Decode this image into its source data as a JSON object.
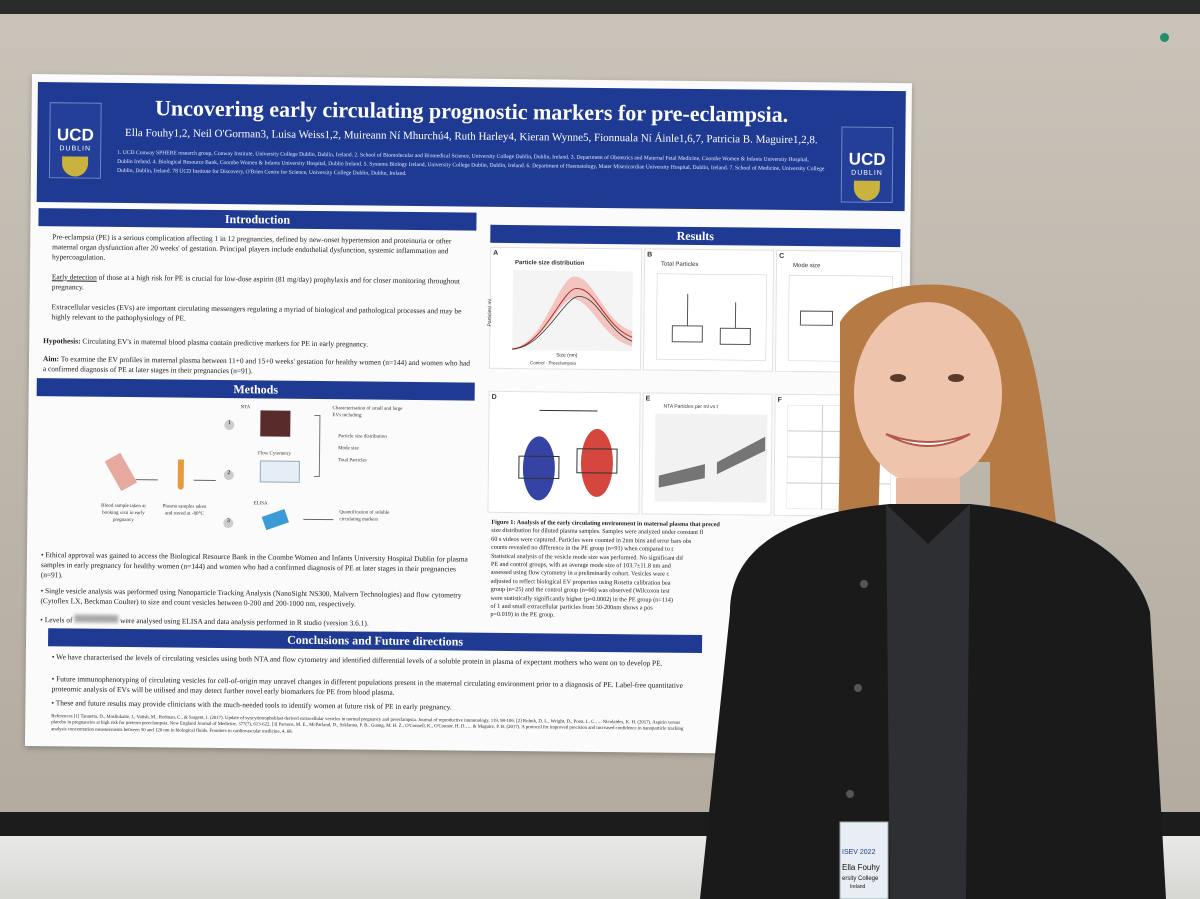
{
  "poster": {
    "title": "Uncovering early circulating prognostic markers for pre-eclampsia.",
    "authors": "Ella Fouhy1,2, Neil O'Gorman3, Luisa Weiss1,2, Muireann Ní Mhurchú4, Ruth Harley4, Kieran Wynne5, Fionnuala Ní Áinle1,6,7, Patricia B. Maguire1,2,8.",
    "affiliations": "1. UCD Conway SPHERE research group, Conway Institute, University College Dublin, Dublin, Ireland. 2. School of Biomolecular and Biomedical Science, University College Dublin, Dublin, Ireland. 3. Department of Obstetrics and Maternal Fetal Medicine, Coombe Women & Infants University Hospital, Dublin Ireland. 4. Biological Resource Bank, Coombe Women & Infants University Hospital, Dublin Ireland. 5. Systems Biology Ireland, University College Dublin, Dublin, Ireland. 6. Department of Haematology, Mater Misericordiae University Hospital, Dublin, Ireland. 7. School of Medicine, University College Dublin, Dublin, Ireland. 78 UCD Institute for Discovery, O'Brien Centre for Science, University College Dublin, Dublin, Ireland.",
    "logo_left": {
      "ucd": "UCD",
      "dublin": "DUBLIN"
    },
    "logo_right": {
      "ucd": "UCD",
      "dublin": "DUBLIN"
    },
    "introduction": {
      "heading": "Introduction",
      "p1": "Pre-eclampsia (PE) is a serious complication affecting 1 in 12 pregnancies, defined by new-onset hypertension and proteinuria or other maternal organ dysfunction after 20 weeks' of gestation. Principal players include endothelial dysfunction, systemic inflammation and hypercoagulation.",
      "p2_link": "Early detection",
      "p2": " of those at a high risk for PE is crucial for low-dose aspirin (81 mg/day) prophylaxis and for closer monitoring throughout pregnancy.",
      "p3": "Extracellular vesicles (EVs) are important circulating messengers regulating a myriad of biological and pathological processes and may be highly relevant to the pathophysiology of PE.",
      "hypothesis_label": "Hypothesis:",
      "hypothesis": " Circulating EV's in maternal blood plasma contain predictive markers for PE in early pregnancy.",
      "aim_label": "Aim:",
      "aim": " To examine the EV profiles in maternal plasma between 11+0 and 15+0 weeks' gestation for healthy women (n=144) and women who had a confirmed diagnosis of PE at later stages in their pregnancies (n=91)."
    },
    "methods": {
      "heading": "Methods",
      "fig": {
        "blood": "Blood sample taken at booking visit in early pregnancy",
        "plasma": "Plasma samples taken and stored at -80°C",
        "nta": "NTA",
        "flow": "Flow Cytometry",
        "elisa": "ELISA",
        "char": "Characterisation of small and large EVs including:",
        "checks": [
          "Particle size distribution",
          "Mode size",
          "Total Particles"
        ],
        "quant": "Quantification of soluble circulating markers",
        "steps": [
          "1",
          "2",
          "3"
        ]
      },
      "b1": "Ethical approval was gained to access the Biological Resource Bank in the Coombe Women and Infants University Hospital Dublin for plasma samples in early pregnancy for healthy women (n=144) and women who had a confirmed diagnosis of PE at later stages in their pregnancies (n=91).",
      "b2": "Single vesicle analysis was performed using Nanoparticle Tracking Analysis (NanoSight NS300, Malvern Technologies) and flow cytometry (Cytoflex LX, Beckman Coulter) to size and count vesicles between 0-200 and 200-1000 nm, respectively.",
      "b3a": "Levels of",
      "b3b": "were analysed using ELISA and data analysis performed in R studio (version 3.6.1)."
    },
    "results": {
      "heading": "Results",
      "panels": [
        "A",
        "B",
        "C",
        "D",
        "E",
        "F"
      ],
      "a_title": "Particle size distribution",
      "a_ylabel": "Particles/ ml",
      "a_xlabel": "Size (nm)",
      "a_legend": "Control · Preeclampsia",
      "b_title": "Total Particles",
      "c_title": "Mode size",
      "e_title": "NTA Particles per ml vs t",
      "figure_caption_bold": "Figure 1: Analysis of the early circulating environment in maternal plasma that preced",
      "caption_lines": [
        "size distribution for diluted plasma samples. Samples were analyzed under constant fl",
        "60 s videos were captured. Particles were counted in 2nm bins and error bars obs",
        "counts revealed no difference in the PE group (n=91) when compared to t",
        "Statistical analysis of the vesicle mode size was performed. No significant dif",
        "PE and control groups, with an average mode size of 103.7±11.8 nm and",
        "assessed using flow cytometry in a preliminarily cohort. Vesicles were c",
        "adjusted to reflect biological EV properties using Rosetta calibration bea",
        "group (n=25) and the control group (n=66) was observed (Wilcoxon test",
        "were statistically significantly higher (p=0.0002) in the PE group (n=114)",
        "of 1          and small extracellular particles from 50-200nm shows a pos",
        "p=0.019) in the PE group."
      ]
    },
    "conclusions": {
      "heading": "Conclusions and Future directions",
      "c1": "We have characterised the levels of circulating vesicles using both NTA and flow cytometry and identified differential levels of a soluble protein in plasma of expectant mothers who went on to develop PE.",
      "c2": "Future immunophenotyping of circulating vesicles for cell-of-origin may unravel changes in different populations present in the maternal circulating environment prior to a diagnosis of PE. Label-free quantitative proteomic analysis of EVs will be utilised and may detect further novel early biomarkers for PE from blood plasma.",
      "c3": "These and future results may provide clinicians with the much-needed tools to identify women at future risk of PE in early pregnancy."
    },
    "references": "References [1] Tannetta, D., Masliukaite, I., Vatish, M., Redman, C., & Sargent, I. (2017). Update of syncytiotrophoblast derived extracellular vesicles in normal pregnancy and preeclampsia. Journal of reproductive immunology, 119, 98-106. [2] Rolnik, D. L., Wright, D., Poon, L. C., ... Nicolaides, K. H. (2017). Aspirin versus placebo in pregnancies at high risk for preterm preeclampsia. New England Journal of Medicine, 377(7), 613-622. [3] Parsons, M. E., McParland, D., Szklanna, P. B., Guang, M. H. Z., O'Connell, K., O'Connor, H. D., ... & Maguire, P. B. (2017). A protocol for improved precision and increased confidence in nanoparticle tracking analysis concentration measurements between 50 and 120 nm in biological fluids. Frontiers in cardiovascular medicine, 4, 68."
  },
  "badge": {
    "line1": "Ella Fouhy",
    "line2": "ersity College",
    "line3": "Ireland",
    "event": "ISEV 2022"
  },
  "colors": {
    "banner": "#1f3a93",
    "control": "#1f2f9a",
    "preeclampsia": "#d0322a"
  }
}
